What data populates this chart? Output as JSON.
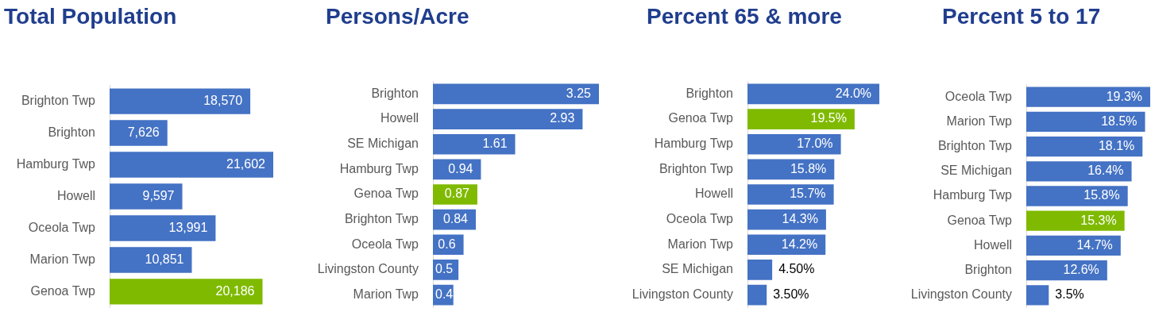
{
  "chart_data": [
    {
      "type": "bar",
      "orientation": "horizontal",
      "title": "Total Population",
      "tick_labels": "y",
      "categories": [
        "Brighton Twp",
        "Brighton",
        "Hamburg Twp",
        "Howell",
        "Oceola Twp",
        "Marion Twp",
        "Genoa Twp"
      ],
      "values": [
        18570,
        7626,
        21602,
        9597,
        13991,
        10851,
        20186
      ],
      "colors": [
        "#4472c4",
        "#4472c4",
        "#4472c4",
        "#4472c4",
        "#4472c4",
        "#4472c4",
        "#7fba00"
      ],
      "value_labels": [
        "18,570",
        "7,626",
        "21,602",
        "9,597",
        "13,991",
        "10,851",
        "20,186"
      ]
    },
    {
      "type": "bar",
      "orientation": "horizontal",
      "title": "Persons/Acre",
      "tick_labels": "y",
      "categories": [
        "Brighton",
        "Howell",
        "SE Michigan",
        "Hamburg Twp",
        "Genoa Twp",
        "Brighton Twp",
        "Oceola Twp",
        "Livingston County",
        "Marion Twp"
      ],
      "values": [
        3.25,
        2.93,
        1.61,
        0.94,
        0.87,
        0.84,
        0.6,
        0.5,
        0.4
      ],
      "colors": [
        "#4472c4",
        "#4472c4",
        "#4472c4",
        "#4472c4",
        "#7fba00",
        "#4472c4",
        "#4472c4",
        "#4472c4",
        "#4472c4"
      ],
      "value_labels": [
        "3.25",
        "2.93",
        "1.61",
        "0.94",
        "0.87",
        "0.84",
        "0.6",
        "0.5",
        "0.4"
      ]
    },
    {
      "type": "bar",
      "orientation": "horizontal",
      "title": "Percent 65 & more",
      "tick_labels": "y",
      "categories": [
        "Brighton",
        "Genoa Twp",
        "Hamburg Twp",
        "Brighton Twp",
        "Howell",
        "Oceola Twp",
        "Marion Twp",
        "SE Michigan",
        "Livingston County"
      ],
      "values": [
        24.0,
        19.5,
        17.0,
        15.8,
        15.7,
        14.3,
        14.2,
        4.5,
        3.5
      ],
      "colors": [
        "#4472c4",
        "#7fba00",
        "#4472c4",
        "#4472c4",
        "#4472c4",
        "#4472c4",
        "#4472c4",
        "#4472c4",
        "#4472c4"
      ],
      "value_labels": [
        "24.0%",
        "19.5%",
        "17.0%",
        "15.8%",
        "15.7%",
        "14.3%",
        "14.2%",
        "4.50%",
        "3.50%"
      ]
    },
    {
      "type": "bar",
      "orientation": "horizontal",
      "title": "Percent 5 to 17",
      "tick_labels": "y",
      "categories": [
        "Oceola Twp",
        "Marion Twp",
        "Brighton Twp",
        "SE Michigan",
        "Hamburg Twp",
        "Genoa Twp",
        "Howell",
        "Brighton",
        "Livingston County"
      ],
      "values": [
        19.3,
        18.5,
        18.1,
        16.4,
        15.8,
        15.3,
        14.7,
        12.6,
        3.5
      ],
      "colors": [
        "#4472c4",
        "#4472c4",
        "#4472c4",
        "#4472c4",
        "#4472c4",
        "#7fba00",
        "#4472c4",
        "#4472c4",
        "#4472c4"
      ],
      "value_labels": [
        "19.3%",
        "18.5%",
        "18.1%",
        "16.4%",
        "15.8%",
        "15.3%",
        "14.7%",
        "12.6%",
        "3.5%"
      ]
    }
  ]
}
